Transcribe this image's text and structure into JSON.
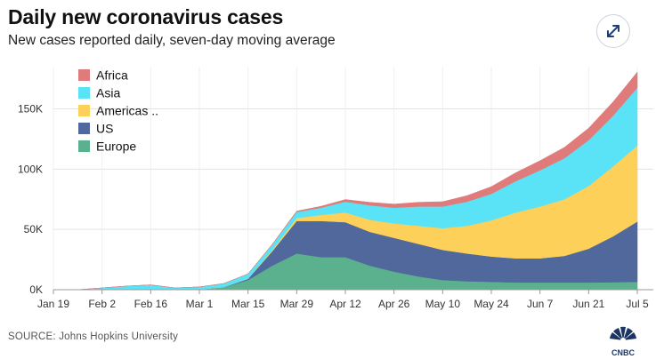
{
  "header": {
    "title": "Daily new coronavirus cases",
    "subtitle": "New cases reported daily, seven-day moving average"
  },
  "expand_button": {
    "icon": "expand-arrows-icon"
  },
  "source": "SOURCE: Johns Hopkins University",
  "logo": {
    "text": "CNBC"
  },
  "chart_data": {
    "type": "area",
    "stacked": true,
    "title": "Daily new coronavirus cases",
    "subtitle": "New cases reported daily, seven-day moving average",
    "x_start": "Jan 19",
    "x_end": "Jul 5",
    "x_ticks": [
      "Jan 19",
      "Feb 2",
      "Feb 16",
      "Mar 1",
      "Mar 15",
      "Mar 29",
      "Apr 12",
      "Apr 26",
      "May 10",
      "May 24",
      "Jun 7",
      "Jun 21",
      "Jul 5"
    ],
    "y_ticks": [
      0,
      50000,
      100000,
      150000
    ],
    "y_tick_labels": [
      "0K",
      "50K",
      "100K",
      "150K"
    ],
    "ylim": [
      0,
      185000
    ],
    "grid": true,
    "legend_position": "top-left",
    "x": [
      "Jan 19",
      "Jan 26",
      "Feb 2",
      "Feb 9",
      "Feb 16",
      "Feb 23",
      "Mar 1",
      "Mar 8",
      "Mar 15",
      "Mar 22",
      "Mar 29",
      "Apr 5",
      "Apr 12",
      "Apr 19",
      "Apr 26",
      "May 3",
      "May 10",
      "May 17",
      "May 24",
      "May 31",
      "Jun 7",
      "Jun 14",
      "Jun 21",
      "Jun 28",
      "Jul 5"
    ],
    "series": [
      {
        "name": "Europe",
        "color": "#5bb08d",
        "values": [
          0,
          0,
          0,
          0,
          0,
          0,
          300,
          2000,
          8000,
          20000,
          30000,
          27000,
          27000,
          20000,
          15000,
          11000,
          8000,
          7000,
          6500,
          6000,
          6000,
          6000,
          6000,
          6200,
          6500
        ]
      },
      {
        "name": "US",
        "color": "#50689b",
        "values": [
          0,
          0,
          0,
          0,
          0,
          0,
          0,
          100,
          1000,
          12000,
          27000,
          30000,
          29000,
          28000,
          28000,
          27000,
          25000,
          23000,
          21000,
          20000,
          20000,
          22000,
          28000,
          38000,
          50000
        ]
      },
      {
        "name": "Americas ..",
        "color": "#fdd05a",
        "values": [
          0,
          0,
          0,
          0,
          0,
          0,
          0,
          0,
          100,
          1000,
          2500,
          5000,
          8000,
          10000,
          12000,
          15000,
          18000,
          23000,
          30000,
          38000,
          43000,
          47000,
          52000,
          58000,
          63000
        ]
      },
      {
        "name": "Asia",
        "color": "#5ae3f6",
        "values": [
          0,
          0,
          1500,
          3000,
          4000,
          1500,
          2000,
          3000,
          4000,
          4500,
          5000,
          6000,
          9000,
          12000,
          13000,
          16000,
          18000,
          20000,
          22000,
          26000,
          30000,
          34000,
          38000,
          42000,
          48000
        ]
      },
      {
        "name": "Africa",
        "color": "#e07b7b",
        "values": [
          0,
          0,
          0,
          0,
          0,
          0,
          0,
          0,
          50,
          300,
          700,
          1200,
          1800,
          2500,
          3000,
          3500,
          4000,
          5000,
          6000,
          7000,
          8000,
          9000,
          10000,
          11500,
          13000
        ]
      }
    ]
  }
}
